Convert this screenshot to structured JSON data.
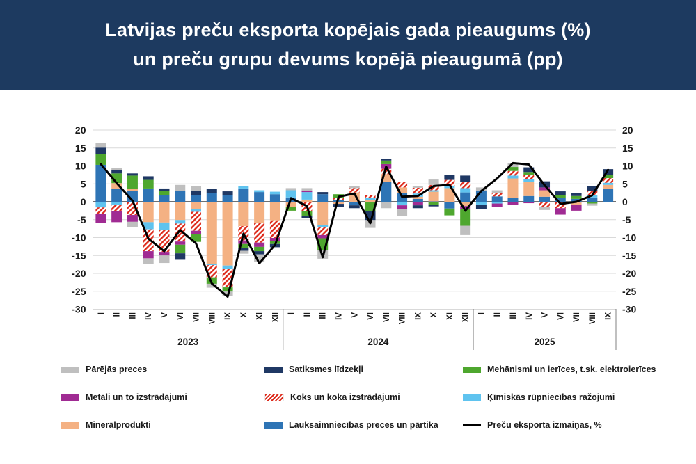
{
  "header": {
    "title_line1": "Latvijas preču eksporta kopējais gada pieaugums (%)",
    "title_line2": "un preču grupu devums kopējā pieaugumā (pp)",
    "background_color": "#1d3a60",
    "text_color": "#ffffff"
  },
  "chart_data": {
    "type": "combo-stacked-bar-line",
    "title": "Latvijas preču eksporta kopējais gada pieaugums (%) un preču grupu devums kopējā pieaugumā (pp)",
    "units": {
      "bars": "pp",
      "line": "%"
    },
    "y_axis": {
      "min": -30,
      "max": 20,
      "step": 5,
      "tick_labels": [
        "20",
        "15",
        "10",
        "5",
        "0",
        "-5",
        "-10",
        "-15",
        "-20",
        "-25",
        "-30"
      ],
      "grid": true,
      "labels_both_sides": true
    },
    "categories": [
      "I",
      "II",
      "III",
      "IV",
      "V",
      "VI",
      "VII",
      "VIII",
      "IX",
      "X",
      "XI",
      "XII",
      "I",
      "II",
      "III",
      "IV",
      "V",
      "VI",
      "VII",
      "VIII",
      "IX",
      "X",
      "XI",
      "XII",
      "I",
      "II",
      "III",
      "IV",
      "V",
      "VI",
      "VII",
      "VIII",
      "IX"
    ],
    "year_groups": [
      {
        "label": "2023",
        "months": 12
      },
      {
        "label": "2024",
        "months": 12
      },
      {
        "label": "2025",
        "months": 9
      }
    ],
    "series": [
      {
        "id": "lauksaimnieciba",
        "name": "Lauksaimniecības preces un pārtika",
        "color": "#2e74b5",
        "pattern": "solid",
        "values": [
          10.3,
          3.6,
          3.0,
          3.7,
          1.9,
          3.0,
          1.8,
          2.5,
          1.9,
          3.7,
          2.7,
          2.1,
          1.2,
          0,
          2.1,
          0.6,
          -1.0,
          0,
          5.5,
          2.5,
          0.8,
          0.1,
          -1.9,
          2.6,
          3.1,
          1.5,
          1.0,
          1.6,
          1.4,
          1.0,
          0.8,
          1.2,
          3.6
        ]
      },
      {
        "id": "mineralprodukti",
        "name": "Minerālprodukti",
        "color": "#f4b183",
        "pattern": "solid",
        "values": [
          0,
          1.6,
          0.5,
          -5.7,
          -5.8,
          -5.1,
          -2.1,
          -17.3,
          -17.8,
          -6.8,
          -6.0,
          -5.2,
          -1.4,
          0.6,
          -6.5,
          -0.6,
          2.6,
          0.5,
          2.2,
          1.5,
          0.6,
          2.7,
          3.8,
          -1.2,
          0,
          0,
          5.5,
          3.9,
          1.8,
          0,
          -0.8,
          0,
          1.1
        ]
      },
      {
        "id": "kimiskas",
        "name": "Ķīmiskās rūpniecības ražojumi",
        "color": "#5fc3ef",
        "pattern": "solid",
        "values": [
          -1.6,
          -0.8,
          0,
          -2.0,
          -2.0,
          -1.0,
          -0.7,
          -0.4,
          -0.9,
          0.7,
          0.5,
          0.7,
          2.0,
          2.1,
          -0.5,
          0,
          0,
          0.5,
          0,
          -1.0,
          0.9,
          0.4,
          0.7,
          1.2,
          -0.9,
          -0.5,
          0.8,
          0.9,
          0,
          0,
          0,
          0.7,
          0.6
        ]
      },
      {
        "id": "koks",
        "name": "Koks un koka izstrādājumi",
        "color": "#dd2b1c",
        "pattern": "hatch",
        "values": [
          -1.8,
          -1.9,
          -3.7,
          -6.1,
          -6.2,
          -5.0,
          -5.3,
          -3.4,
          -5.2,
          -4.0,
          -5.4,
          -4.9,
          0,
          -2.6,
          -2.3,
          0.5,
          1.2,
          0.8,
          1.5,
          1.5,
          1.6,
          1.5,
          1.6,
          1.8,
          0,
          1.0,
          1.3,
          1.1,
          -1.4,
          -1.8,
          0,
          1.1,
          1.3
        ]
      },
      {
        "id": "metali",
        "name": "Metāli un to izstrādājumi",
        "color": "#a02b93",
        "pattern": "solid",
        "values": [
          -2.6,
          -3.0,
          -1.9,
          -2.0,
          -1.0,
          -0.9,
          -1.0,
          0,
          0,
          -1.0,
          -1.2,
          -0.9,
          0,
          0.4,
          -0.9,
          0,
          0,
          0,
          1.3,
          -1.0,
          -1.0,
          0,
          0,
          -0.9,
          0,
          -1.0,
          -0.9,
          -0.4,
          0.8,
          -1.8,
          -1.7,
          0,
          0
        ]
      },
      {
        "id": "mehanismi",
        "name": "Mehānismi un ierīces, t.sk. elektroierīces",
        "color": "#4ea72e",
        "pattern": "solid",
        "values": [
          3.0,
          2.7,
          3.8,
          2.4,
          1.2,
          -2.4,
          -2.1,
          -1.8,
          -1.2,
          -1.1,
          -1.2,
          -0.8,
          -1.1,
          -1.3,
          -3.4,
          1.0,
          0,
          -2.7,
          1.0,
          0,
          0,
          -0.8,
          -1.9,
          -4.6,
          0,
          0,
          1.1,
          0.8,
          0,
          0.8,
          0.8,
          -0.5,
          0.9
        ]
      },
      {
        "id": "satiksmes",
        "name": "Satiksmes līdzekļi",
        "color": "#1f3864",
        "pattern": "solid",
        "values": [
          1.8,
          0.9,
          0.6,
          1.0,
          0.6,
          -1.8,
          1.3,
          1.1,
          1.0,
          -0.8,
          -0.9,
          -0.9,
          0,
          -0.6,
          0.6,
          -0.8,
          -0.8,
          -2.4,
          0.5,
          0,
          -0.8,
          -0.5,
          1.4,
          1.7,
          -1.1,
          0,
          0,
          1.3,
          1.7,
          1.1,
          0.9,
          1.3,
          1.6
        ]
      },
      {
        "id": "parejas",
        "name": "Pārējās preces",
        "color": "#bfbfbf",
        "pattern": "solid",
        "values": [
          1.4,
          0.6,
          -1.4,
          -1.6,
          -2.1,
          1.7,
          1.2,
          -1.1,
          -1.2,
          -0.8,
          -2.0,
          0,
          0.6,
          0.7,
          -2.3,
          0,
          0.5,
          -2.2,
          -1.8,
          -1.9,
          0.5,
          1.5,
          0,
          -2.6,
          0.9,
          0.7,
          1.0,
          0,
          -0.9,
          0,
          0,
          -0.6,
          0
        ]
      }
    ],
    "line": {
      "id": "eksporta-izmainas",
      "name": "Preču eksporta izmaiņas, %",
      "color": "#000000",
      "values": [
        10.5,
        5.2,
        0.3,
        -10.3,
        -13.8,
        -7.9,
        -11.6,
        -22.8,
        -26.5,
        -8.9,
        -17.2,
        -12.0,
        1.0,
        -1.2,
        -15.5,
        1.4,
        2.3,
        -6.0,
        9.8,
        1.4,
        1.6,
        4.4,
        4.7,
        -2.5,
        3.0,
        6.5,
        10.8,
        10.4,
        4.6,
        -0.6,
        0.0,
        1.8,
        8.9
      ]
    },
    "legend": [
      {
        "ref": "parejas"
      },
      {
        "ref": "satiksmes"
      },
      {
        "ref": "mehanismi"
      },
      {
        "ref": "metali"
      },
      {
        "ref": "koks"
      },
      {
        "ref": "kimiskas"
      },
      {
        "ref": "mineralprodukti"
      },
      {
        "ref": "lauksaimnieciba"
      },
      {
        "ref": "eksporta-izmainas"
      }
    ],
    "legend_position": "bottom"
  }
}
